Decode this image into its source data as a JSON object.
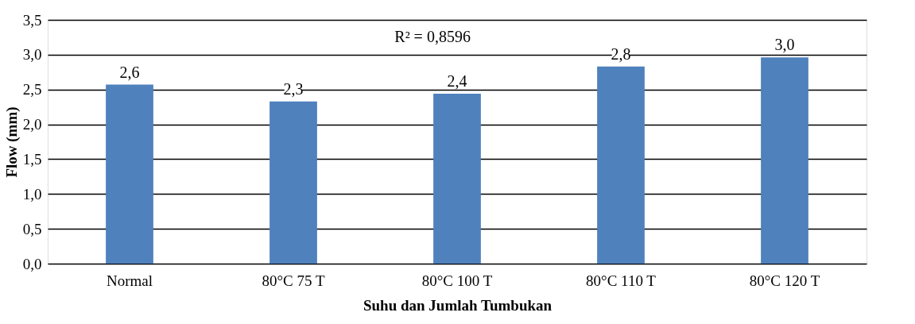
{
  "chart_data": {
    "type": "bar",
    "xlabel": "Suhu dan Jumlah Tumbukan",
    "ylabel": "Flow (mm)",
    "categories": [
      "Normal",
      "80°C 75 T",
      "80°C 100 T",
      "80°C 110 T",
      "80°C 120 T"
    ],
    "values": [
      2.57,
      2.33,
      2.44,
      2.83,
      2.96
    ],
    "color": "#4f81bd",
    "value_labels": [
      "2,6",
      "2,3",
      "2,4",
      "2,8",
      "3,0"
    ],
    "ylim": [
      0,
      3.5
    ],
    "yticks": [
      {
        "value": 0,
        "label": "0,0"
      },
      {
        "value": 0.5,
        "label": "0,5"
      },
      {
        "value": 1,
        "label": "1,0"
      },
      {
        "value": 1.5,
        "label": "1,5"
      },
      {
        "value": 2,
        "label": "2,0"
      },
      {
        "value": 2.5,
        "label": "2,5"
      },
      {
        "value": 3,
        "label": "3,0"
      },
      {
        "value": 3.5,
        "label": "3,5"
      }
    ],
    "annotations": [
      "R² = 0,8596"
    ],
    "grid": "y"
  }
}
